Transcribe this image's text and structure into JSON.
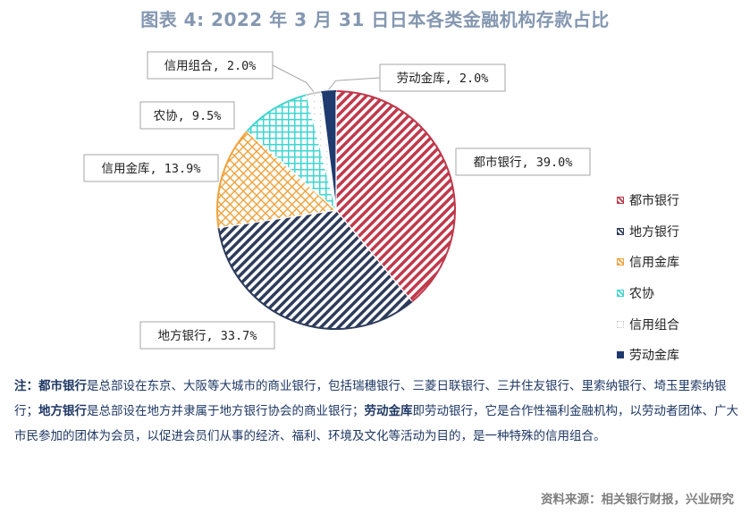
{
  "title": "图表 4:  2022 年 3 月 31 日日本各类金融机构存款占比",
  "chart_data": {
    "type": "pie",
    "categories": [
      "都市银行",
      "地方银行",
      "信用金库",
      "农协",
      "信用组合",
      "劳动金库"
    ],
    "values": [
      39.0,
      33.7,
      13.9,
      9.5,
      2.0,
      2.0
    ],
    "data_labels": [
      "都市银行, 39.0%",
      "地方银行, 33.7%",
      "信用金库, 13.9%",
      "农协, 9.5%",
      "信用组合, 2.0%",
      "劳动金库, 2.0%"
    ],
    "colors": [
      "#c0394b",
      "#2e3c5c",
      "#f0a23a",
      "#3fd6d0",
      "#c8c8c8",
      "#1f3a6e"
    ],
    "start_angle_deg": 0,
    "direction": "clockwise",
    "legend_position": "right"
  },
  "note": {
    "prefix": "注：",
    "term1": "都市银行",
    "text1": "是总部设在东京、大阪等大城市的商业银行，包括瑞穗银行、三菱日联银行、三井住友银行、里索纳银行、埼玉里索纳银行；",
    "term2": "地方银行",
    "text2": "是总部设在地方并隶属于地方银行协会的商业银行；",
    "term3": "劳动金库",
    "text3": "即劳动银行，它是合作性福利金融机构，以劳动者团体、广大市民参加的团体为会员，以促进会员们从事的经济、福利、环境及文化等活动为目的，是一种特殊的信用组合。"
  },
  "source": "资料来源：相关银行财报，兴业研究"
}
